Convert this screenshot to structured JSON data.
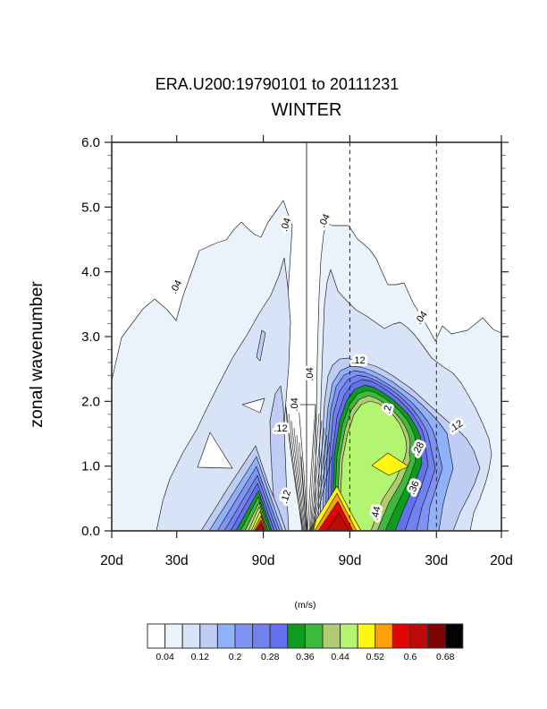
{
  "title": {
    "line1": "ERA.U200:19790101 to 20111231",
    "line2": "WINTER"
  },
  "y_axis": {
    "label": "zonal wavenumber",
    "ticks": [
      "0.0",
      "1.0",
      "2.0",
      "3.0",
      "4.0",
      "5.0",
      "6.0"
    ]
  },
  "x_axis": {
    "ticks": [
      "20d",
      "30d",
      "90d",
      "90d",
      "30d",
      "20d"
    ]
  },
  "colorbar": {
    "units": "(m/s)",
    "labels": [
      "0.04",
      "0.12",
      "0.2",
      "0.28",
      "0.36",
      "0.44",
      "0.52",
      "0.6",
      "0.68"
    ],
    "colors": [
      "#FFFFFF",
      "#EAF3FB",
      "#D9E3F8",
      "#BFCDF5",
      "#8FB1FA",
      "#7E93F3",
      "#7081F0",
      "#6470EE",
      "#0D9C1E",
      "#3DBA3D",
      "#B1CB70",
      "#B3F470",
      "#FFF712",
      "#FFA109",
      "#E00505",
      "#BE0909",
      "#7E0404",
      "#000000"
    ]
  },
  "contour_labels": [
    ".04",
    ".04",
    ".04",
    ".04",
    ".04",
    ".04",
    ".12",
    ".12",
    ".12",
    ".12",
    ".2",
    ".28",
    ".36",
    ".44"
  ],
  "chart_data": {
    "type": "filled_contour",
    "title": "ERA.U200:19790101 to 20111231",
    "subtitle": "WINTER",
    "ylabel": "zonal wavenumber",
    "ylim": [
      0,
      6
    ],
    "y_major_tick_step": 1.0,
    "y_minor_tick_step": 0.2,
    "x_tick_labels": [
      "20d",
      "30d",
      "90d",
      "90d",
      "30d",
      "20d"
    ],
    "x_axis_meaning": "period in days, linear in frequency; left half westward-propagating, right half eastward-propagating, center = zero frequency (solid line)",
    "units": "(m/s)",
    "contour_levels": [
      0.04,
      0.08,
      0.12,
      0.16,
      0.2,
      0.24,
      0.28,
      0.32,
      0.36,
      0.4,
      0.44,
      0.48,
      0.52,
      0.56,
      0.6,
      0.64,
      0.68
    ],
    "palette": [
      "#FFFFFF",
      "#EAF3FB",
      "#D9E3F8",
      "#BFCDF5",
      "#8FB1FA",
      "#7E93F3",
      "#7081F0",
      "#6470EE",
      "#0D9C1E",
      "#3DBA3D",
      "#B1CB70",
      "#B3F470",
      "#FFF712",
      "#FFA109",
      "#E00505",
      "#BE0909",
      "#7E0404",
      "#000000"
    ],
    "legend_position": "bottom horizontal label bar",
    "reference_lines": {
      "solid_vertical": "zero frequency (center)",
      "dashed_vertical": [
        "eastward 90d period",
        "eastward 30d period"
      ]
    },
    "features": [
      {
        "name": "westward low-frequency peak",
        "location": "period ~90d westward, wavenumber 0-1",
        "peak_value_m_s": 0.62
      },
      {
        "name": "eastward low-frequency peak",
        "location": "period ~90d eastward, wavenumber 0-1",
        "peak_value_m_s": 0.62
      },
      {
        "name": "eastward intraseasonal maximum",
        "location": "period 30-90d eastward, wavenumber ~1",
        "peak_value_m_s": 0.5
      },
      {
        "name": "0.04 envelope",
        "location": "spectral power exceeds 0.04 m/s up to wavenumber ~5 near low frequencies, tapering to ~3 at 20d periods"
      }
    ]
  }
}
